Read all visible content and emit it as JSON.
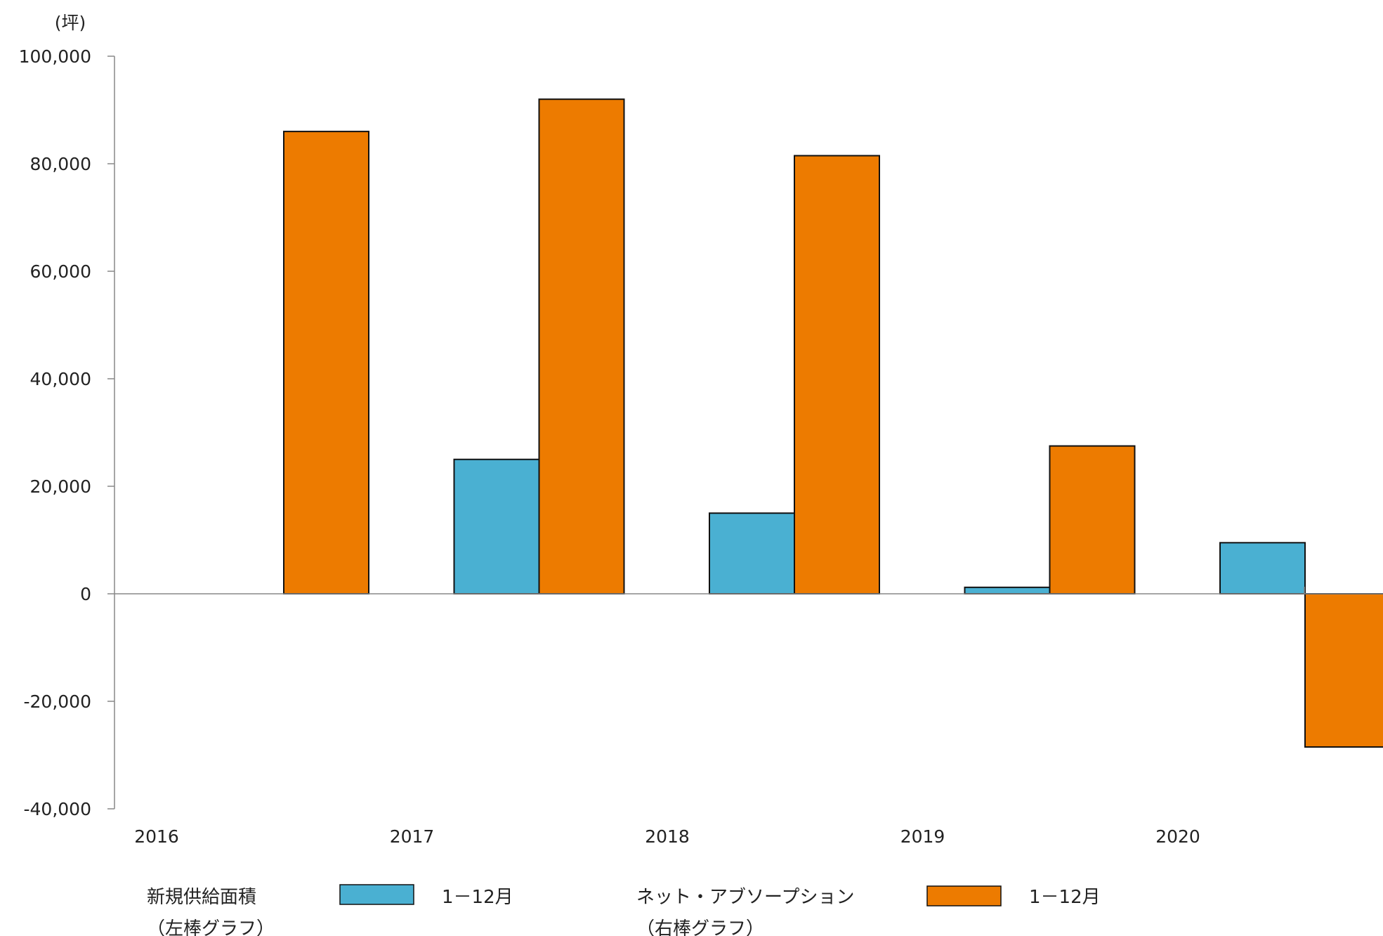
{
  "chart_data": {
    "type": "bar",
    "unit_label": "(坪)",
    "categories": [
      "2016",
      "2017",
      "2018",
      "2019",
      "2020"
    ],
    "series": [
      {
        "name": "新規供給面積",
        "values": [
          0,
          25000,
          15000,
          1200,
          9500
        ],
        "color": "#4ab0d2"
      },
      {
        "name": "ネット・アブソープション",
        "values": [
          86000,
          92000,
          81500,
          27500,
          -28500
        ],
        "color": "#ed7b00"
      }
    ],
    "ylim": [
      -40000,
      100000
    ],
    "yticks": [
      -40000,
      -20000,
      0,
      20000,
      40000,
      60000,
      80000,
      100000
    ],
    "ytick_labels": [
      "-40,000",
      "-20,000",
      "0",
      "20,000",
      "40,000",
      "60,000",
      "80,000",
      "100,000"
    ],
    "grid": false,
    "legend": {
      "placement": "bottom",
      "items": [
        {
          "label": "新規供給面積",
          "sublabel": "（左棒グラフ）",
          "period": "1－12月",
          "color": "#4ab0d2"
        },
        {
          "label": "ネット・アブソープション",
          "sublabel": "（右棒グラフ）",
          "period": "1－12月",
          "color": "#ed7b00"
        }
      ]
    }
  }
}
